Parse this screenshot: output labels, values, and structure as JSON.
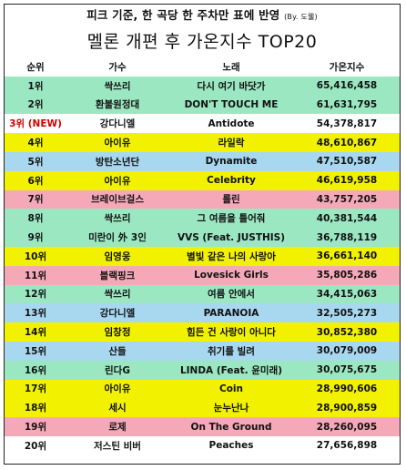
{
  "header": {
    "note": "피크 기준, 한 곡당 한 주차만 표에 반영",
    "note_by": "(By. 도웰)",
    "title": "멜론 개편 후 가온지수 TOP20"
  },
  "columns": [
    "순위",
    "가수",
    "노래",
    "가온지수"
  ],
  "colors": {
    "green": "#9be7c2",
    "yellow": "#f2f200",
    "blue": "#a8d8f0",
    "pink": "#f5a8b8",
    "lavender": "#e6d9f4",
    "white": "#ffffff",
    "new_rank": "#d00000"
  },
  "rows": [
    {
      "rank": "1위",
      "artist": "싹쓰리",
      "song": "다시 여기 바닷가",
      "score": "65,416,458",
      "color": "green"
    },
    {
      "rank": "2위",
      "artist": "환불원정대",
      "song": "DON'T TOUCH ME",
      "score": "61,631,795",
      "color": "green"
    },
    {
      "rank": "3위 (NEW)",
      "artist": "강다니엘",
      "song": "Antidote",
      "score": "54,378,817",
      "color": "white",
      "is_new": true
    },
    {
      "rank": "4위",
      "artist": "아이유",
      "song": "라일락",
      "score": "48,610,867",
      "color": "yellow"
    },
    {
      "rank": "5위",
      "artist": "방탄소년단",
      "song": "Dynamite",
      "score": "47,510,587",
      "color": "blue"
    },
    {
      "rank": "6위",
      "artist": "아이유",
      "song": "Celebrity",
      "score": "46,619,958",
      "color": "yellow"
    },
    {
      "rank": "7위",
      "artist": "브레이브걸스",
      "song": "롤린",
      "score": "43,757,205",
      "color": "pink"
    },
    {
      "rank": "8위",
      "artist": "싹쓰리",
      "song": "그 여름을 틀어줘",
      "score": "40,381,544",
      "color": "green"
    },
    {
      "rank": "9위",
      "artist": "미란이 外 3인",
      "song": "VVS (Feat. JUSTHIS)",
      "score": "36,788,119",
      "color": "green"
    },
    {
      "rank": "10위",
      "artist": "임영웅",
      "song": "별빛 같은 나의 사랑아",
      "score": "36,661,140",
      "color": "yellow"
    },
    {
      "rank": "11위",
      "artist": "블랙핑크",
      "song": "Lovesick Girls",
      "score": "35,805,286",
      "color": "pink"
    },
    {
      "rank": "12위",
      "artist": "싹쓰리",
      "song": "여름 안에서",
      "score": "34,415,063",
      "color": "green"
    },
    {
      "rank": "13위",
      "artist": "강다니엘",
      "song": "PARANOIA",
      "score": "32,505,273",
      "color": "blue"
    },
    {
      "rank": "14위",
      "artist": "임창정",
      "song": "힘든 건 사랑이 아니다",
      "score": "30,852,380",
      "color": "yellow"
    },
    {
      "rank": "15위",
      "artist": "산들",
      "song": "취기를 빌려",
      "score": "30,079,009",
      "color": "blue"
    },
    {
      "rank": "16위",
      "artist": "린다G",
      "song": "LINDA (Feat. 윤미래)",
      "score": "30,075,675",
      "color": "green"
    },
    {
      "rank": "17위",
      "artist": "아이유",
      "song": "Coin",
      "score": "28,990,606",
      "color": "yellow"
    },
    {
      "rank": "18위",
      "artist": "세시",
      "song": "눈누난나",
      "score": "28,900,859",
      "color": "yellow"
    },
    {
      "rank": "19위",
      "artist": "로제",
      "song": "On The Ground",
      "score": "28,260,095",
      "color": "pink"
    },
    {
      "rank": "20위",
      "artist": "저스틴 비버",
      "song": "Peaches",
      "score": "27,656,898",
      "color": "white"
    }
  ]
}
